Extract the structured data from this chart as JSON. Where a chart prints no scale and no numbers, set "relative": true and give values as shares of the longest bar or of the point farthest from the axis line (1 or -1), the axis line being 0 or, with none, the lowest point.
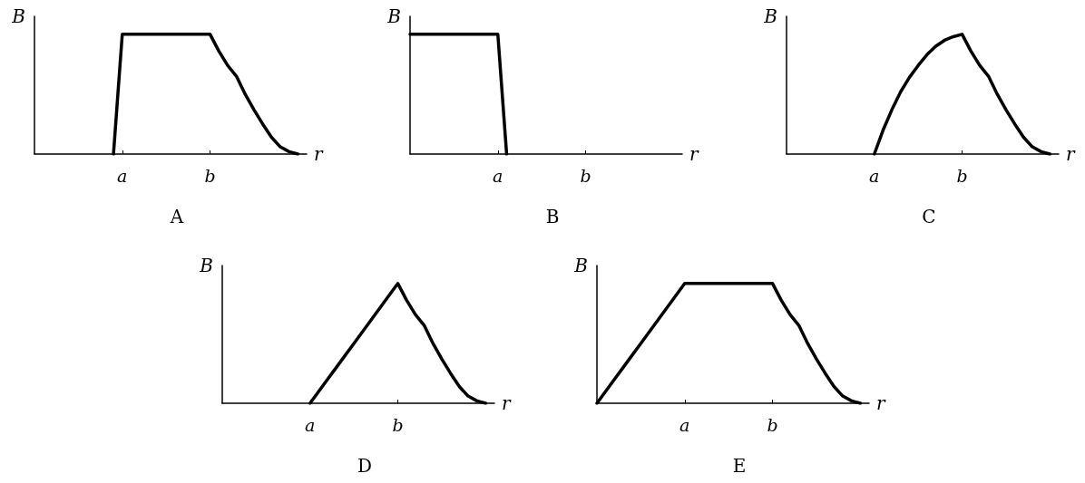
{
  "chart_data": [
    {
      "type": "line",
      "title": "A",
      "xlabel": "r",
      "ylabel": "B",
      "relative": true,
      "tick_labels": "x",
      "color": "#000000",
      "categories": [
        null,
        null,
        null,
        null,
        null,
        null,
        null,
        null,
        null,
        null,
        "a",
        null,
        null,
        null,
        null,
        null,
        null,
        null,
        null,
        null,
        "b",
        null,
        null,
        null,
        null,
        null,
        null,
        null,
        null,
        null,
        null,
        null
      ],
      "values": [
        null,
        null,
        null,
        null,
        null,
        null,
        null,
        null,
        null,
        0,
        1,
        1,
        1,
        1,
        1,
        1,
        1,
        1,
        1,
        1,
        1,
        0.86,
        0.74,
        0.65,
        0.5,
        0.37,
        0.25,
        0.14,
        0.06,
        0.02,
        0,
        null
      ]
    },
    {
      "type": "line",
      "title": "B",
      "xlabel": "r",
      "ylabel": "B",
      "relative": true,
      "tick_labels": "x",
      "color": "#000000",
      "categories": [
        null,
        null,
        null,
        null,
        null,
        null,
        null,
        null,
        null,
        null,
        "a",
        null,
        null,
        null,
        null,
        null,
        null,
        null,
        null,
        null,
        "b",
        null,
        null,
        null,
        null,
        null,
        null,
        null,
        null,
        null,
        null,
        null
      ],
      "values": [
        1,
        1,
        1,
        1,
        1,
        1,
        1,
        1,
        1,
        1,
        1,
        0,
        null,
        null,
        null,
        null,
        null,
        null,
        null,
        null,
        null,
        null,
        null,
        null,
        null,
        null,
        null,
        null,
        null,
        null,
        null,
        null
      ]
    },
    {
      "type": "line",
      "title": "C",
      "xlabel": "r",
      "ylabel": "B",
      "relative": true,
      "tick_labels": "x",
      "color": "#000000",
      "categories": [
        null,
        null,
        null,
        null,
        null,
        null,
        null,
        null,
        null,
        null,
        "a",
        null,
        null,
        null,
        null,
        null,
        null,
        null,
        null,
        null,
        "b",
        null,
        null,
        null,
        null,
        null,
        null,
        null,
        null,
        null,
        null,
        null
      ],
      "values": [
        null,
        null,
        null,
        null,
        null,
        null,
        null,
        null,
        null,
        null,
        0,
        0.2,
        0.37,
        0.52,
        0.64,
        0.74,
        0.83,
        0.9,
        0.95,
        0.98,
        1,
        0.86,
        0.74,
        0.65,
        0.5,
        0.37,
        0.25,
        0.14,
        0.06,
        0.02,
        0,
        null
      ]
    },
    {
      "type": "line",
      "title": "D",
      "xlabel": "r",
      "ylabel": "B",
      "relative": true,
      "tick_labels": "x",
      "color": "#000000",
      "categories": [
        null,
        null,
        null,
        null,
        null,
        null,
        null,
        null,
        null,
        null,
        "a",
        null,
        null,
        null,
        null,
        null,
        null,
        null,
        null,
        null,
        "b",
        null,
        null,
        null,
        null,
        null,
        null,
        null,
        null,
        null,
        null,
        null
      ],
      "values": [
        null,
        null,
        null,
        null,
        null,
        null,
        null,
        null,
        null,
        null,
        0,
        0.1,
        0.2,
        0.3,
        0.4,
        0.5,
        0.6,
        0.7,
        0.8,
        0.9,
        1,
        0.86,
        0.74,
        0.65,
        0.5,
        0.37,
        0.25,
        0.14,
        0.06,
        0.02,
        0,
        null
      ]
    },
    {
      "type": "line",
      "title": "E",
      "xlabel": "r",
      "ylabel": "B",
      "relative": true,
      "tick_labels": "x",
      "color": "#000000",
      "categories": [
        null,
        null,
        null,
        null,
        null,
        null,
        null,
        null,
        null,
        null,
        "a",
        null,
        null,
        null,
        null,
        null,
        null,
        null,
        null,
        null,
        "b",
        null,
        null,
        null,
        null,
        null,
        null,
        null,
        null,
        null,
        null,
        null
      ],
      "values": [
        0,
        0.1,
        0.2,
        0.3,
        0.4,
        0.5,
        0.6,
        0.7,
        0.8,
        0.9,
        1,
        1,
        1,
        1,
        1,
        1,
        1,
        1,
        1,
        1,
        1,
        0.86,
        0.74,
        0.65,
        0.5,
        0.37,
        0.25,
        0.14,
        0.06,
        0.02,
        0,
        null
      ]
    }
  ]
}
